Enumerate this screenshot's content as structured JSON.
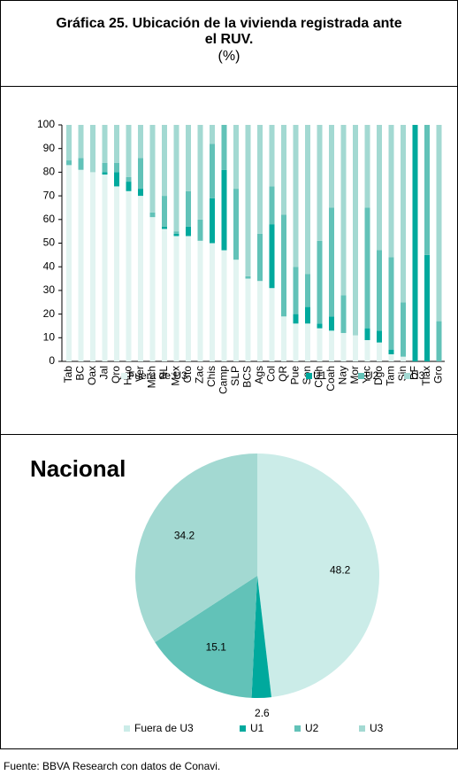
{
  "title": "Gráfica 25. Ubicación de la vivienda registrada ante el RUV.",
  "unit": "(%)",
  "source": "Fuente: BBVA Research con datos de Conavi.",
  "chart_data": [
    {
      "type": "stacked_bar",
      "categories": [
        "Tab",
        "BC",
        "Oax",
        "Jal",
        "Qro",
        "Hgo",
        "Ver",
        "Mich",
        "NL",
        "Méx",
        "Gto",
        "Zac",
        "Chis",
        "Camp",
        "SLP",
        "BCS",
        "Ags",
        "Col",
        "QR",
        "Pue",
        "Son",
        "Chih",
        "Coah",
        "Nay",
        "Mor",
        "Yuc",
        "Dgo",
        "Tam",
        "Sin",
        "DF",
        "Tlax",
        "Gro"
      ],
      "series": [
        {
          "name": "Fuera de U3",
          "color": "#e2f4f1",
          "values": [
            83,
            81,
            80,
            79,
            74,
            72,
            70,
            61,
            56,
            53,
            53,
            51,
            50,
            47,
            43,
            35,
            34,
            31,
            19,
            16,
            16,
            14,
            13,
            12,
            11,
            9,
            8,
            3,
            2,
            0,
            0,
            0
          ]
        },
        {
          "name": "U1",
          "color": "#00a99d",
          "values": [
            0,
            0,
            0,
            1,
            6,
            4,
            3,
            0,
            1,
            1,
            4,
            0,
            19,
            34,
            0,
            0,
            0,
            27,
            0,
            4,
            7,
            2,
            6,
            0,
            0,
            5,
            5,
            2,
            0,
            100,
            45,
            0
          ]
        },
        {
          "name": "U2",
          "color": "#62c2b8",
          "values": [
            2,
            5,
            0,
            4,
            4,
            2,
            13,
            2,
            13,
            1,
            15,
            9,
            23,
            19,
            30,
            1,
            20,
            16,
            43,
            20,
            14,
            35,
            46,
            16,
            0,
            51,
            34,
            39,
            23,
            0,
            55,
            17
          ]
        },
        {
          "name": "U3",
          "color": "#a3d9d2",
          "values": [
            15,
            14,
            20,
            16,
            16,
            22,
            14,
            37,
            30,
            45,
            28,
            40,
            8,
            0,
            27,
            64,
            46,
            26,
            38,
            60,
            63,
            49,
            35,
            72,
            89,
            35,
            53,
            56,
            75,
            0,
            0,
            83
          ]
        }
      ],
      "ylim": [
        0,
        100
      ],
      "yticks": [
        0,
        10,
        20,
        30,
        40,
        50,
        60,
        70,
        80,
        90,
        100
      ]
    },
    {
      "type": "pie",
      "title": "Nacional",
      "categories": [
        "Fuera de U3",
        "U1",
        "U2",
        "U3"
      ],
      "values": [
        48.2,
        2.6,
        15.1,
        34.2
      ],
      "colors": [
        "#cbece8",
        "#00a99d",
        "#62c2b8",
        "#a3d9d2"
      ]
    }
  ]
}
